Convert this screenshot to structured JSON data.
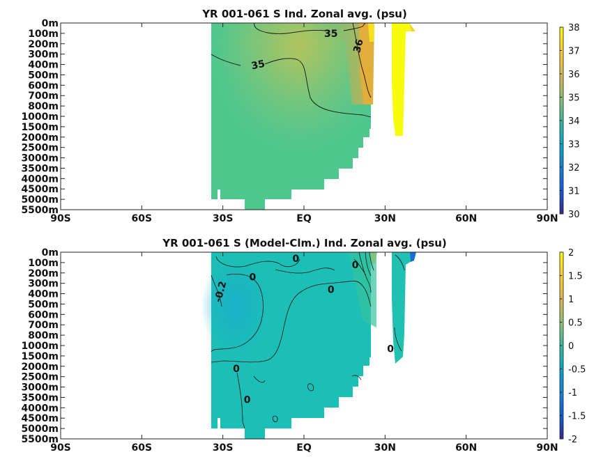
{
  "chart_data": [
    {
      "type": "heatmap",
      "title": "YR 001-061 S Ind. Zonal avg. (psu)",
      "xlim": [
        -90,
        90
      ],
      "x_ticks": [
        -90,
        -60,
        -30,
        0,
        30,
        60,
        90
      ],
      "x_tick_labels": [
        "90S",
        "60S",
        "30S",
        "EQ",
        "30N",
        "60N",
        "90N"
      ],
      "y_tick_labels": [
        "0m",
        "100m",
        "200m",
        "300m",
        "400m",
        "500m",
        "600m",
        "700m",
        "800m",
        "1000m",
        "1500m",
        "2000m",
        "2500m",
        "3000m",
        "3500m",
        "4000m",
        "4500m",
        "5000m",
        "5500m"
      ],
      "colorbar": {
        "min": 30,
        "max": 38,
        "ticks": [
          "30",
          "31",
          "32",
          "33",
          "34",
          "35",
          "36",
          "37",
          "38"
        ]
      },
      "contour_labels": [
        {
          "text": "35",
          "lat": 10,
          "level": 1.0
        },
        {
          "text": "36",
          "lat": 20,
          "level": 2.2
        },
        {
          "text": "35",
          "lat": -17,
          "level": 4.0
        }
      ]
    },
    {
      "type": "heatmap",
      "title": "YR 001-061 S (Model-Clm.) Ind. Zonal avg. (psu)",
      "xlim": [
        -90,
        90
      ],
      "x_ticks": [
        -90,
        -60,
        -30,
        0,
        30,
        60,
        90
      ],
      "x_tick_labels": [
        "90S",
        "60S",
        "30S",
        "EQ",
        "30N",
        "60N",
        "90N"
      ],
      "y_tick_labels": [
        "0m",
        "100m",
        "200m",
        "300m",
        "400m",
        "500m",
        "600m",
        "700m",
        "800m",
        "1000m",
        "1500m",
        "2000m",
        "2500m",
        "3000m",
        "3500m",
        "4000m",
        "4500m",
        "5000m",
        "5500m"
      ],
      "colorbar": {
        "min": -2,
        "max": 2,
        "ticks": [
          "-2",
          "-1.5",
          "-1",
          "-0.5",
          "0",
          "0.5",
          "1",
          "1.5",
          "2"
        ]
      },
      "contour_labels": [
        {
          "text": "0",
          "lat": -3,
          "level": 0.6
        },
        {
          "text": "0",
          "lat": 19,
          "level": 1.2
        },
        {
          "text": "0",
          "lat": -19,
          "level": 2.4
        },
        {
          "text": "-0.2",
          "lat": -31,
          "level": 3.8
        },
        {
          "text": "0",
          "lat": 10,
          "level": 3.6
        },
        {
          "text": "0",
          "lat": 32,
          "level": 9.3
        },
        {
          "text": "0",
          "lat": -25,
          "level": 11.2
        },
        {
          "text": "0",
          "lat": -21,
          "level": 14.2
        }
      ]
    }
  ]
}
